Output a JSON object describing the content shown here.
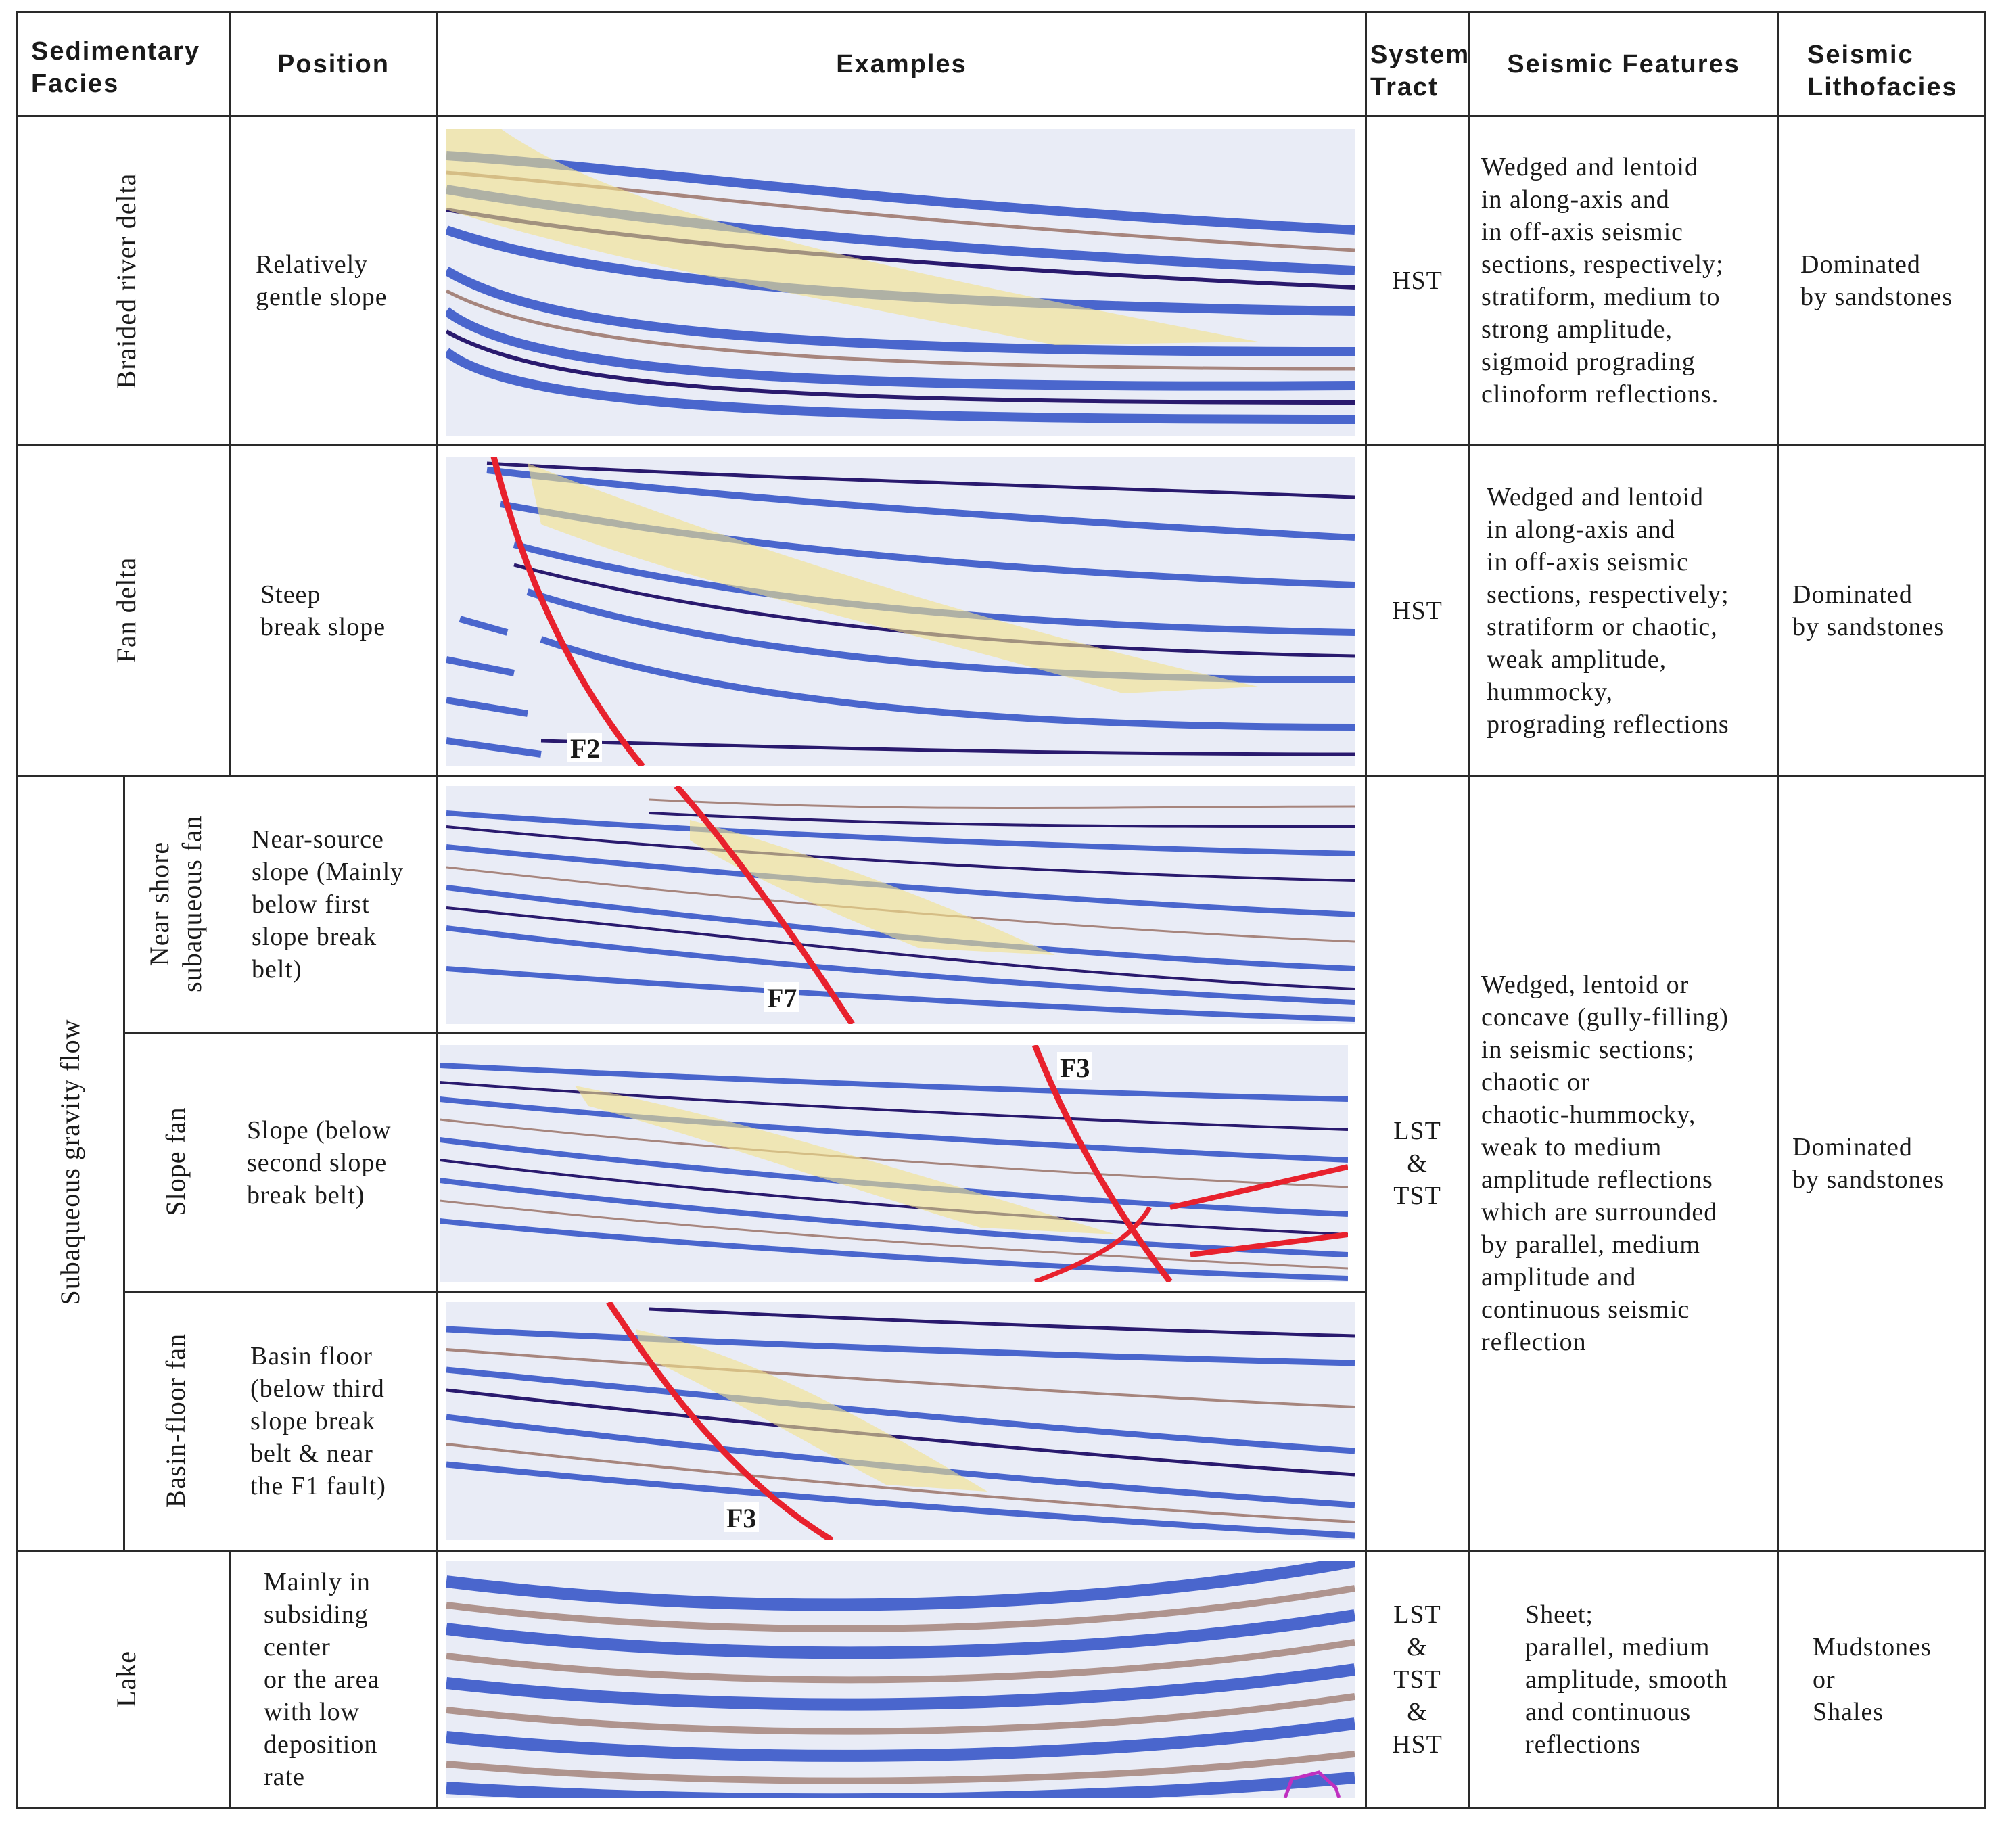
{
  "header": {
    "facies": "Sedimentary\nFacies",
    "position": "Position",
    "examples": "Examples",
    "system_tract": "System\nTract",
    "seismic_features": "Seismic Features",
    "lithofacies": "Seismic\nLithofacies"
  },
  "rows": {
    "braided": {
      "facies": "Braided river delta",
      "position": "Relatively\ngentle slope",
      "tract": "HST",
      "features": "Wedged and lentoid\nin along-axis and\nin off-axis seismic\nsections, respectively;\nstratiform, medium to\nstrong amplitude,\nsigmoid prograding\nclinoform reflections.",
      "litho": "Dominated\nby sandstones"
    },
    "fan_delta": {
      "facies": "Fan delta",
      "position": "Steep\nbreak slope",
      "tract": "HST",
      "features": "Wedged and lentoid\nin along-axis and\nin off-axis seismic\nsections, respectively;\nstratiform or chaotic,\nweak amplitude,\nhummocky,\nprograding reflections",
      "litho": "Dominated\nby sandstones",
      "fault_label": "F2"
    },
    "gravity": {
      "facies": "Subaqueous gravity flow",
      "tract": "LST\n&\nTST",
      "features": "Wedged, lentoid or\nconcave (gully-filling)\nin seismic sections;\nchaotic or\nchaotic-hummocky,\nweak to medium\namplitude reflections\nwhich are surrounded\nby parallel, medium\namplitude and\ncontinuous seismic\nreflection",
      "litho": "Dominated\nby sandstones",
      "sub": [
        {
          "facies": "Near shore\nsubaqueous fan",
          "position": "Near-source\nslope (Mainly\nbelow first\nslope break\nbelt)",
          "fault_label": "F7"
        },
        {
          "facies": "Slope fan",
          "position": "Slope (below\nsecond  slope\nbreak belt)",
          "fault_label": "F3"
        },
        {
          "facies": "Basin-floor fan",
          "position": "Basin floor\n(below third\nslope break\nbelt & near\nthe F1 fault)",
          "fault_label": "F3"
        }
      ]
    },
    "lake": {
      "facies": "Lake",
      "position": "Mainly in\nsubsiding\ncenter\nor the area\nwith low\ndeposition\nrate",
      "tract": "LST\n&\nTST\n&\nHST",
      "features": "Sheet;\nparallel, medium\namplitude, smooth\nand continuous\nreflections",
      "litho": "Mudstones\nor\nShales"
    }
  },
  "colors": {
    "seismic_blue": "#2f4fc6",
    "seismic_dark": "#2a1a6e",
    "seismic_brown": "#8a5a4a",
    "highlight_yellow": "#f3e38a",
    "fault_red": "#e8212d",
    "grid": "#2a2a2a"
  }
}
